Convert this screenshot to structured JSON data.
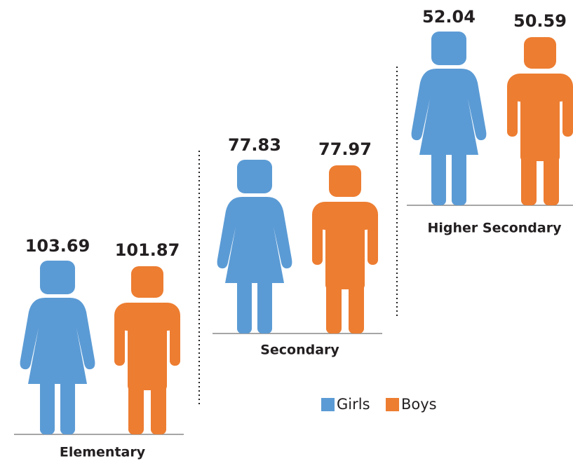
{
  "chart_data": {
    "type": "pictograph",
    "categories": [
      "Elementary",
      "Secondary",
      "Higher Secondary"
    ],
    "series": [
      {
        "name": "Girls",
        "color": "#5b9bd5",
        "values": [
          103.69,
          77.83,
          52.04
        ]
      },
      {
        "name": "Boys",
        "color": "#ed7d31",
        "values": [
          101.87,
          77.97,
          50.59
        ]
      }
    ]
  }
}
